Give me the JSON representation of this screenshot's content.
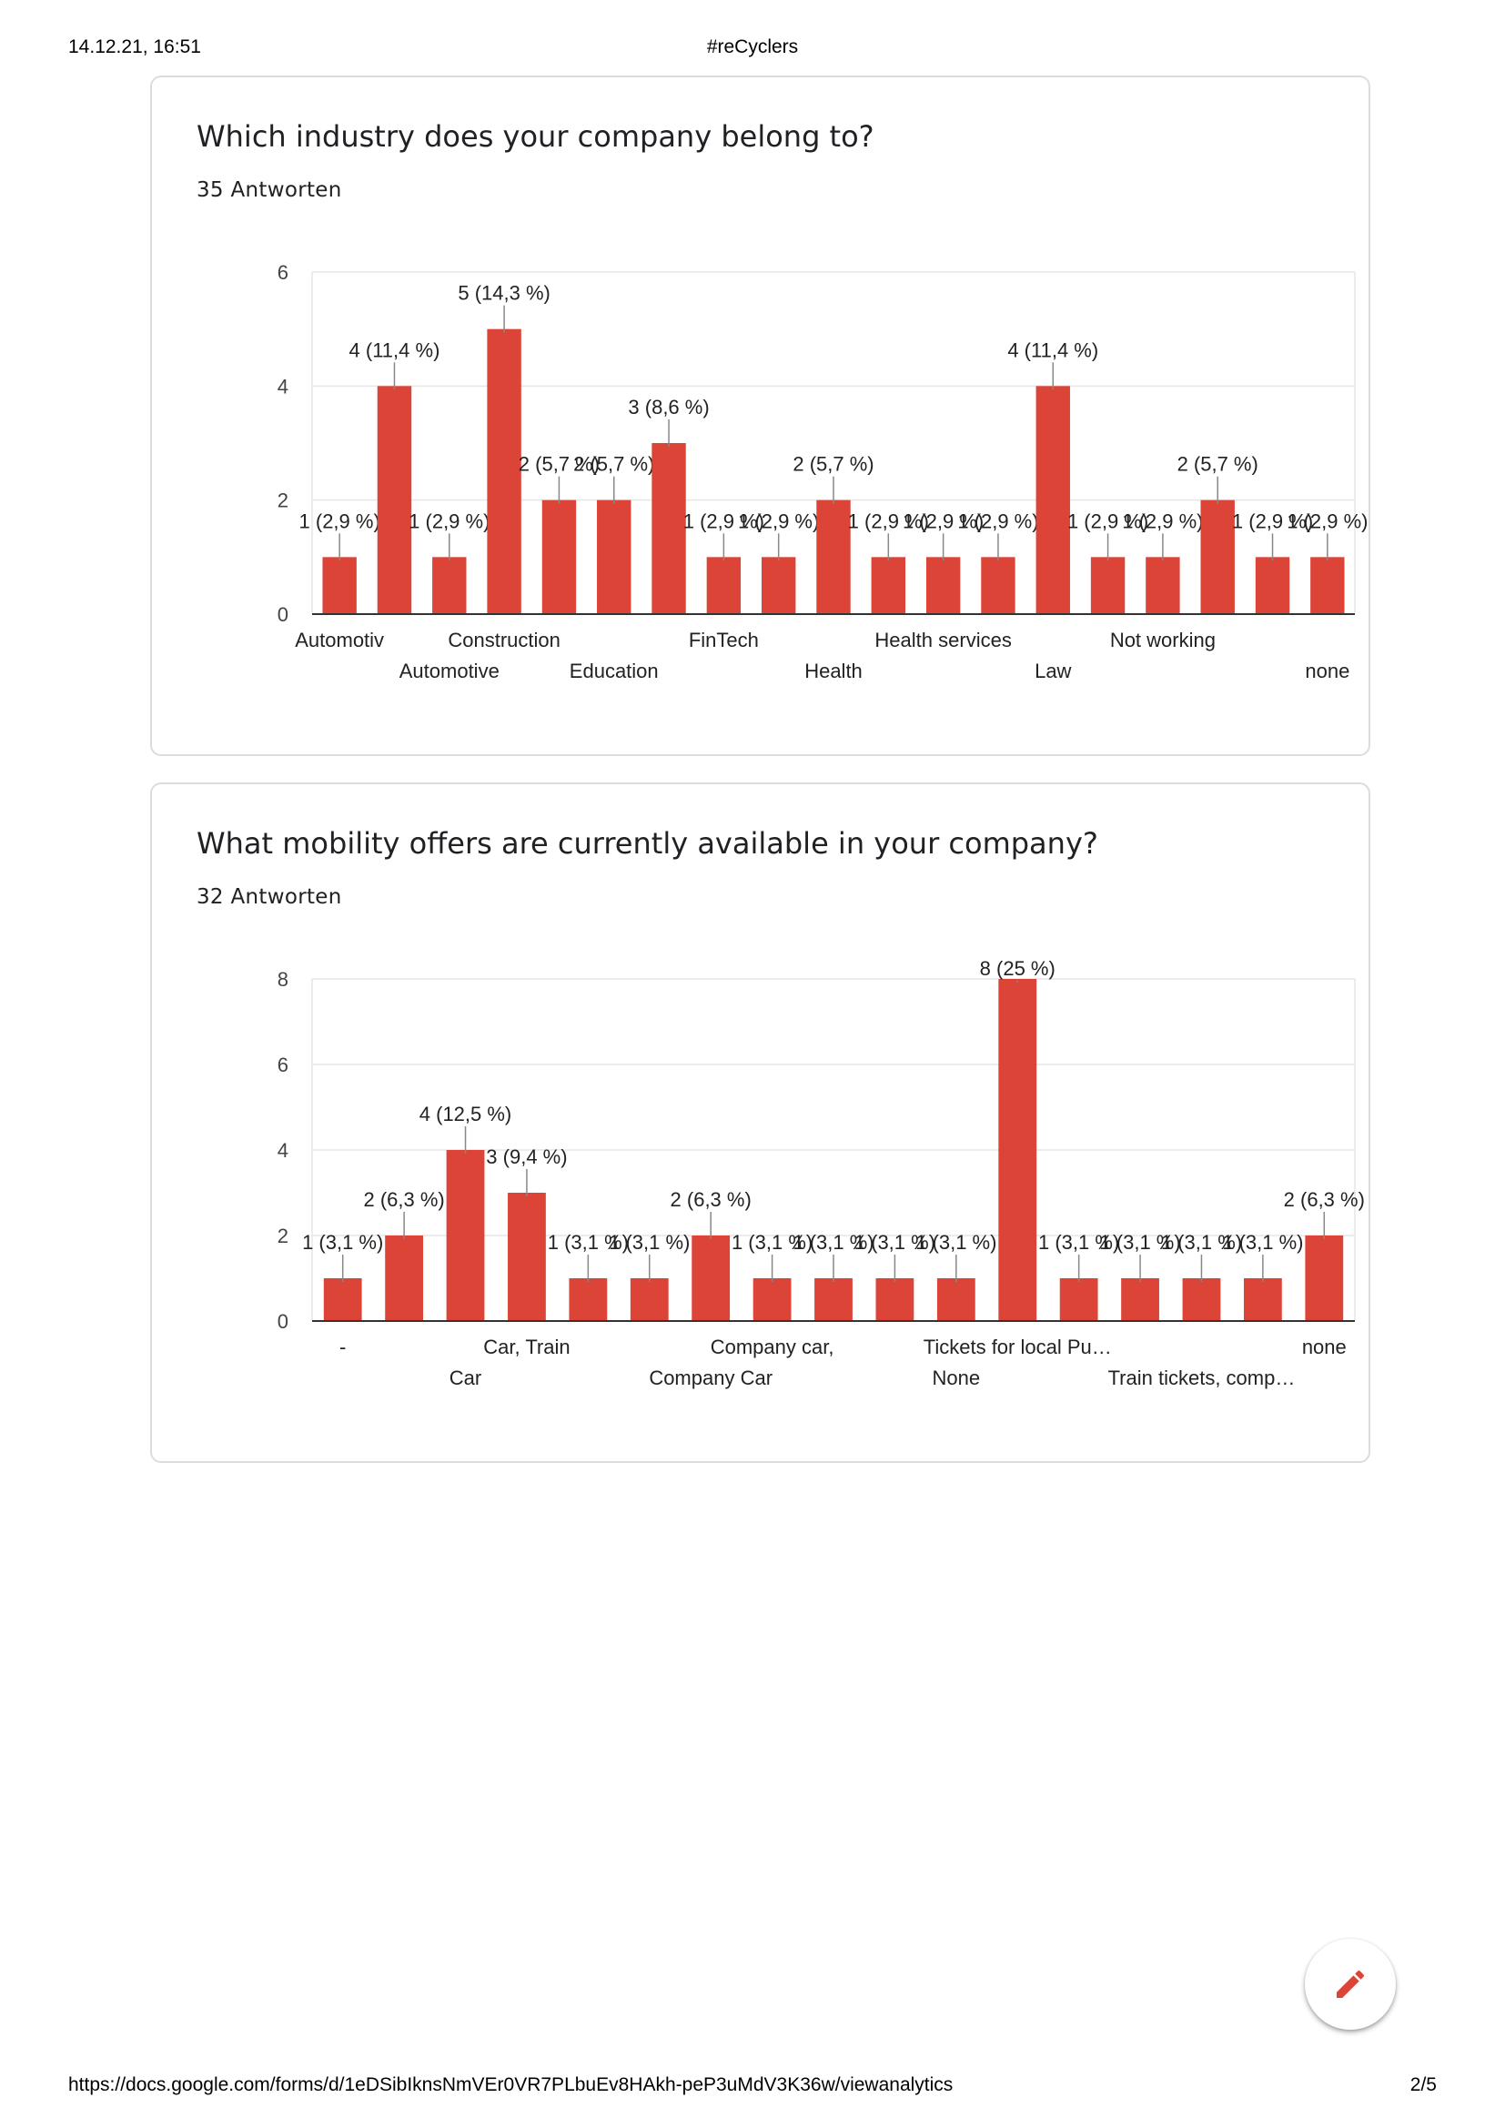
{
  "print_header": {
    "date": "14.12.21, 16:51",
    "title": "#reCyclers"
  },
  "print_footer": {
    "url": "https://docs.google.com/forms/d/1eDSibIknsNmVEr0VR7PLbuEv8HAkh-peP3uMdV3K36w/viewanalytics",
    "page": "2/5"
  },
  "cards": [
    {
      "question": "Which industry does your company belong to?",
      "responses": "35 Antworten"
    },
    {
      "question": "What mobility offers are currently available in your company?",
      "responses": "32 Antworten"
    }
  ],
  "colors": {
    "bar": "#db4437",
    "grid": "#e6e6e6",
    "axis": "#333333",
    "text": "#202124",
    "border": "#dadce0"
  },
  "edit_button": {
    "icon": "pencil-icon"
  },
  "chart_data": [
    {
      "type": "bar",
      "title": "",
      "xlabel": "",
      "ylabel": "",
      "ylim": [
        0,
        6
      ],
      "yticks": [
        0,
        2,
        4,
        6
      ],
      "grid": true,
      "categories": [
        "Automotiv",
        "",
        "",
        "Construction",
        "",
        "",
        "",
        "FinTech",
        "",
        "",
        "",
        "Health services",
        "",
        "",
        "",
        "Not working",
        "",
        "",
        ""
      ],
      "categories_row2": [
        "",
        "",
        "Automotive",
        "",
        "",
        "Education",
        "",
        "",
        "",
        "Health",
        "",
        "",
        "",
        "Law",
        "",
        "",
        "",
        "",
        "none"
      ],
      "values": [
        1,
        4,
        1,
        5,
        2,
        2,
        3,
        1,
        1,
        2,
        1,
        1,
        1,
        4,
        1,
        1,
        2,
        1,
        1
      ],
      "data_labels": [
        "1 (2,9 %)",
        "4 (11,4 %)",
        "1 (2,9 %)",
        "5 (14,3 %)",
        "2 (5,7 %)",
        "2 (5,7 %)",
        "3 (8,6 %)",
        "1 (2,9 %)",
        "1 (2,9 %)",
        "2 (5,7 %)",
        "1 (2,9 %)",
        "1 (2,9 %)",
        "1 (2,9 %)",
        "4 (11,4 %)",
        "1 (2,9 %)",
        "1 (2,9 %)",
        "2 (5,7 %)",
        "1 (2,9 %)",
        "1 (2,9 %)"
      ]
    },
    {
      "type": "bar",
      "title": "",
      "xlabel": "",
      "ylabel": "",
      "ylim": [
        0,
        8
      ],
      "yticks": [
        0,
        2,
        4,
        6,
        8
      ],
      "grid": true,
      "categories": [
        "-",
        "",
        "",
        "Car, Train",
        "",
        "",
        "",
        "Company car,",
        "",
        "",
        "",
        "Tickets for local Pu…",
        "",
        "",
        "",
        "",
        "none"
      ],
      "categories_row2": [
        "",
        "",
        "Car",
        "",
        "",
        "",
        "Company Car",
        "",
        "",
        "",
        "None",
        "",
        "",
        "",
        "Train tickets, comp…",
        "",
        ""
      ],
      "values": [
        1,
        2,
        4,
        3,
        1,
        1,
        2,
        1,
        1,
        1,
        1,
        8,
        1,
        1,
        1,
        1,
        2
      ],
      "data_labels": [
        "1 (3,1 %)",
        "2 (6,3 %)",
        "4 (12,5 %)",
        "3 (9,4 %)",
        "1 (3,1 %)",
        "1 (3,1 %)",
        "2 (6,3 %)",
        "1 (3,1 %)",
        "1 (3,1 %)",
        "1 (3,1 %)",
        "1 (3,1 %)",
        "8 (25 %)",
        "1 (3,1 %)",
        "1 (3,1 %)",
        "1 (3,1 %)",
        "1 (3,1 %)",
        "2 (6,3 %)"
      ]
    }
  ]
}
